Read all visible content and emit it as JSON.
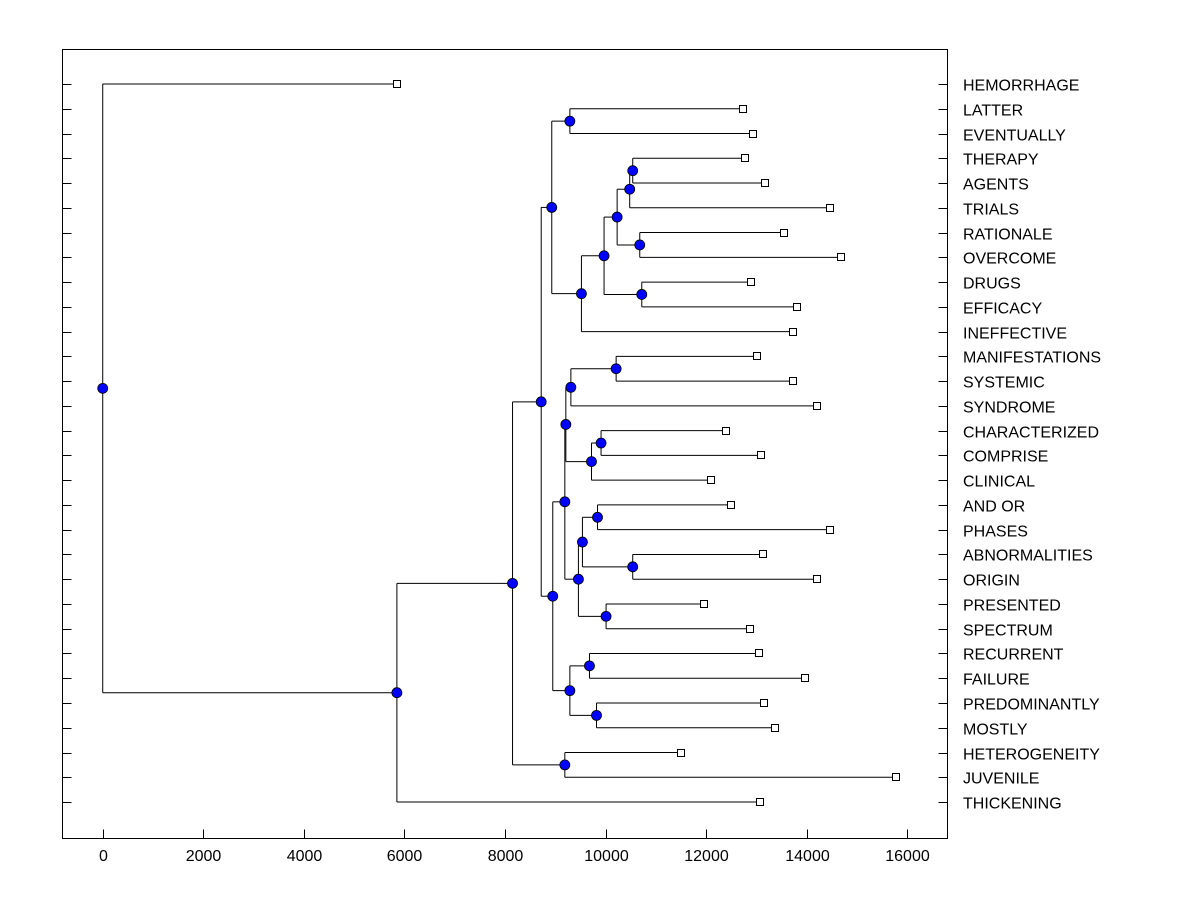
{
  "chart_data": {
    "type": "dendrogram",
    "title": "",
    "xlabel": "",
    "ylabel": "",
    "xlim": [
      -800,
      16800
    ],
    "xticks": [
      0,
      2000,
      4000,
      6000,
      8000,
      10000,
      12000,
      14000,
      16000
    ],
    "grid": false,
    "node_color": "#0000ff",
    "leaves": [
      {
        "label": "HEMORRHAGE",
        "value": 5850
      },
      {
        "label": "LATTER",
        "value": 12740
      },
      {
        "label": "EVENTUALLY",
        "value": 12940
      },
      {
        "label": "THERAPY",
        "value": 12780
      },
      {
        "label": "AGENTS",
        "value": 13170
      },
      {
        "label": "TRIALS",
        "value": 14470
      },
      {
        "label": "RATIONALE",
        "value": 13550
      },
      {
        "label": "OVERCOME",
        "value": 14680
      },
      {
        "label": "DRUGS",
        "value": 12900
      },
      {
        "label": "EFFICACY",
        "value": 13800
      },
      {
        "label": "INEFFECTIVE",
        "value": 13720
      },
      {
        "label": "MANIFESTATIONS",
        "value": 13020
      },
      {
        "label": "SYSTEMIC",
        "value": 13720
      },
      {
        "label": "SYNDROME",
        "value": 14210
      },
      {
        "label": "CHARACTERIZED",
        "value": 12390
      },
      {
        "label": "COMPRISE",
        "value": 13090
      },
      {
        "label": "CLINICAL",
        "value": 12090
      },
      {
        "label": "AND OR",
        "value": 12500
      },
      {
        "label": "PHASES",
        "value": 14470
      },
      {
        "label": "ABNORMALITIES",
        "value": 13130
      },
      {
        "label": "ORIGIN",
        "value": 14210
      },
      {
        "label": "PRESENTED",
        "value": 11960
      },
      {
        "label": "SPECTRUM",
        "value": 12880
      },
      {
        "label": "RECURRENT",
        "value": 13060
      },
      {
        "label": "FAILURE",
        "value": 13960
      },
      {
        "label": "PREDOMINANTLY",
        "value": 13150
      },
      {
        "label": "MOSTLY",
        "value": 13370
      },
      {
        "label": "HETEROGENEITY",
        "value": 11500
      },
      {
        "label": "JUVENILE",
        "value": 15780
      },
      {
        "label": "THICKENING",
        "value": 13070
      }
    ],
    "tree": {
      "height": 0,
      "children": [
        "HEMORRHAGE",
        {
          "height": 5850,
          "children": [
            {
              "height": 8150,
              "children": [
                {
                  "height": 8720,
                  "children": [
                    {
                      "height": 8930,
                      "children": [
                        {
                          "height": 9290,
                          "children": [
                            "LATTER",
                            "EVENTUALLY"
                          ]
                        },
                        {
                          "height": 9520,
                          "children": [
                            {
                              "height": 9970,
                              "children": [
                                {
                                  "height": 10230,
                                  "children": [
                                    {
                                      "height": 10480,
                                      "children": [
                                        {
                                          "height": 10540,
                                          "children": [
                                            "THERAPY",
                                            "AGENTS"
                                          ]
                                        },
                                        "TRIALS"
                                      ]
                                    },
                                    {
                                      "height": 10680,
                                      "children": [
                                        "RATIONALE",
                                        "OVERCOME"
                                      ]
                                    }
                                  ]
                                },
                                {
                                  "height": 10720,
                                  "children": [
                                    "DRUGS",
                                    "EFFICACY"
                                  ]
                                }
                              ]
                            },
                            "INEFFECTIVE"
                          ]
                        }
                      ]
                    },
                    {
                      "height": 8950,
                      "children": [
                        {
                          "height": 9190,
                          "children": [
                            {
                              "height": 9210,
                              "children": [
                                {
                                  "height": 9310,
                                  "children": [
                                    {
                                      "height": 10210,
                                      "children": [
                                        "MANIFESTATIONS",
                                        "SYSTEMIC"
                                      ]
                                    },
                                    "SYNDROME"
                                  ]
                                },
                                {
                                  "height": 9720,
                                  "children": [
                                    {
                                      "height": 9910,
                                      "children": [
                                        "CHARACTERIZED",
                                        "COMPRISE"
                                      ]
                                    },
                                    "CLINICAL"
                                  ]
                                }
                              ]
                            },
                            {
                              "height": 9460,
                              "children": [
                                {
                                  "height": 9540,
                                  "children": [
                                    {
                                      "height": 9840,
                                      "children": [
                                        "AND OR",
                                        "PHASES"
                                      ]
                                    },
                                    {
                                      "height": 10540,
                                      "children": [
                                        "ABNORMALITIES",
                                        "ORIGIN"
                                      ]
                                    }
                                  ]
                                },
                                {
                                  "height": 10010,
                                  "children": [
                                    "PRESENTED",
                                    "SPECTRUM"
                                  ]
                                }
                              ]
                            }
                          ]
                        },
                        {
                          "height": 9290,
                          "children": [
                            {
                              "height": 9680,
                              "children": [
                                "RECURRENT",
                                "FAILURE"
                              ]
                            },
                            {
                              "height": 9820,
                              "children": [
                                "PREDOMINANTLY",
                                "MOSTLY"
                              ]
                            }
                          ]
                        }
                      ]
                    }
                  ]
                },
                {
                  "height": 9190,
                  "children": [
                    "HETEROGENEITY",
                    "JUVENILE"
                  ]
                }
              ]
            },
            "THICKENING"
          ]
        }
      ]
    }
  }
}
